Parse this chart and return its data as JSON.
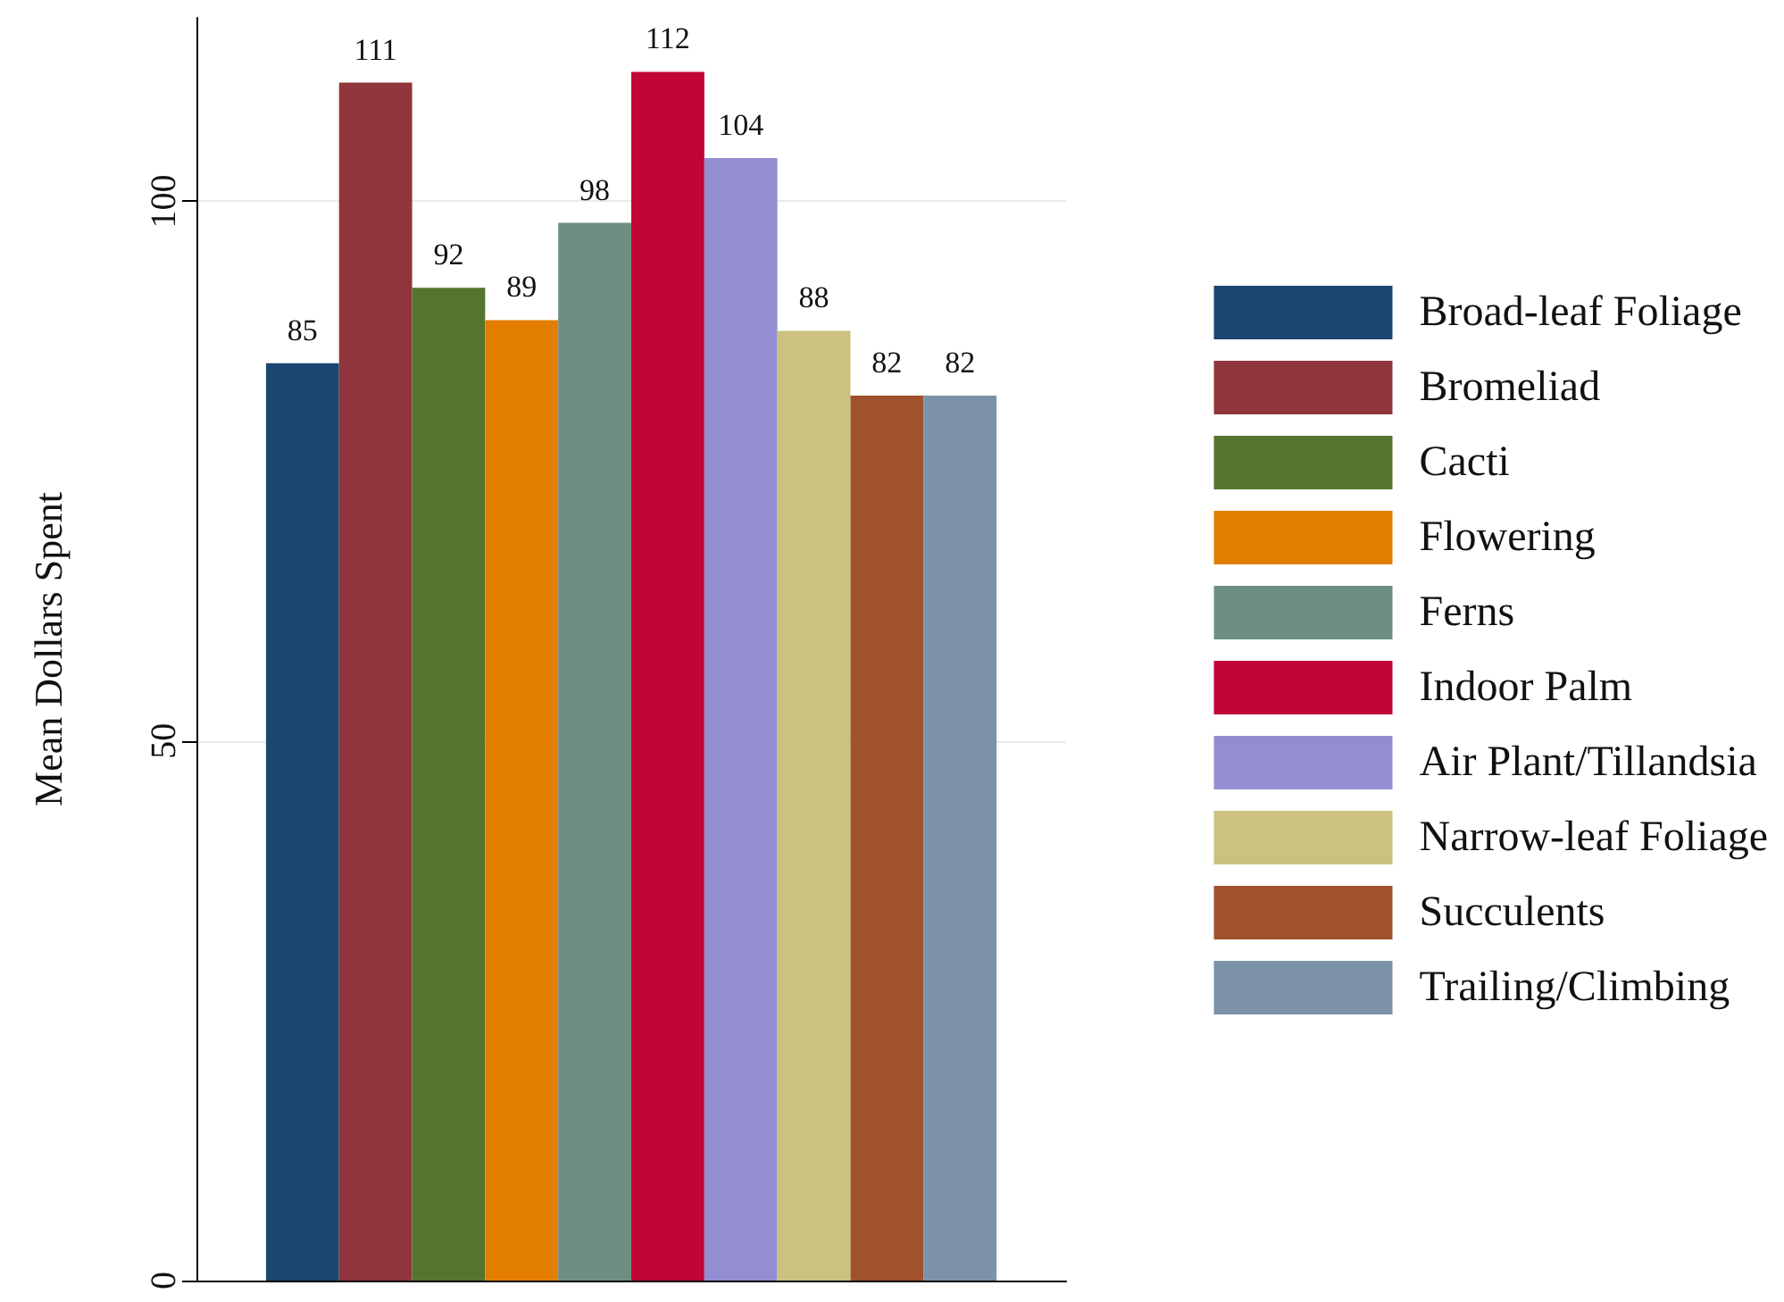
{
  "chart_data": {
    "type": "bar",
    "ylabel": "Mean Dollars Spent",
    "categories": [
      null
    ],
    "series": [
      {
        "name": "Broad-leaf Foliage",
        "color": "#1a476f",
        "values": [
          85
        ]
      },
      {
        "name": "Bromeliad",
        "color": "#90353b",
        "values": [
          111
        ]
      },
      {
        "name": "Cacti",
        "color": "#55752f",
        "values": [
          92
        ]
      },
      {
        "name": "Flowering",
        "color": "#e37e00",
        "values": [
          89
        ]
      },
      {
        "name": "Ferns",
        "color": "#6e8e84",
        "values": [
          98
        ]
      },
      {
        "name": "Indoor Palm",
        "color": "#c10534",
        "values": [
          112
        ]
      },
      {
        "name": "Air Plant/Tillandsia",
        "color": "#938dd2",
        "values": [
          104
        ]
      },
      {
        "name": "Narrow-leaf Foliage",
        "color": "#cac27e",
        "values": [
          88
        ]
      },
      {
        "name": "Succulents",
        "color": "#a0522d",
        "values": [
          82
        ]
      },
      {
        "name": "Trailing/Climbing",
        "color": "#7b92a8",
        "values": [
          82
        ]
      }
    ],
    "ylim": [
      0,
      117
    ],
    "yticks": [
      0,
      50,
      100
    ],
    "grid": "y",
    "legend": "right",
    "data_labels": true
  }
}
